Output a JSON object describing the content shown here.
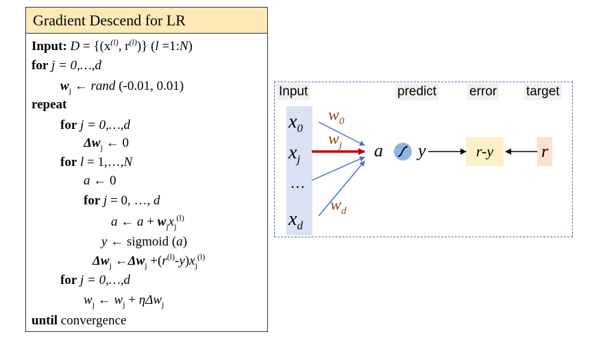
{
  "algorithm": {
    "title": "Gradient Descend for LR",
    "input_kw": "Input:",
    "input_rest_D": "D",
    "input_eq": " = {(x",
    "input_sup_l": "(l)",
    "input_comma": ", r",
    "input_sup_l2": "(l)",
    "input_close": ")} (",
    "input_l": "l",
    "input_eq2": " =1:",
    "input_N": "N",
    "input_paren": ")",
    "for_kw": "for",
    "for_range_italic": "j = 0,…,d",
    "w_var": "w",
    "sub_j": "j",
    "assign_rand": " ← ",
    "rand_word": "rand",
    "rand_args": " (-0.01, 0.01)",
    "repeat_kw": "repeat",
    "delta_w": "Δw",
    "assign_zero": " ← 0",
    "for_l_var": "l",
    "for_l_range": " = 1,…,",
    "for_l_N": "N",
    "a_var": "a",
    "a_zero": " ← 0",
    "for_j2_range": "j",
    "for_j2_rest": " = 0, …, ",
    "for_j2_d": "d",
    "a_update_arrow": " ← ",
    "a_update_plus": " + ",
    "x_var": "x",
    "sup_l1": "(l)",
    "y_var": "y",
    "sigmoid_text": " ← sigmoid (",
    "sigmoid_close": ")",
    "dw_arrow": " ←",
    "dw_plus": " +(",
    "r_var": "r",
    "dw_minus": "-",
    "dw_close": ")",
    "w_plain": "w",
    "w_update_arrow": " ← ",
    "w_update_plus": " + ",
    "eta": "η",
    "until_kw": "until",
    "until_rest": " convergence"
  },
  "diagram": {
    "labels": {
      "input": "Input",
      "predict": "predict",
      "error": "error",
      "target": "target"
    },
    "inputs": {
      "x": "x",
      "sub0": "0",
      "subj": "j",
      "ellipsis": "…",
      "subd": "d"
    },
    "weights": {
      "w": "w",
      "sub0": "0",
      "subj": "j",
      "subd": "d"
    },
    "a_label": "a",
    "y_label": "y",
    "error_box": "r-y",
    "target_box": "r",
    "colors": {
      "input_column": "#d9e2f3",
      "sigmoid_node": "#8eb4e3",
      "highlight_arrow": "#c00000",
      "input_arrow": "#4472c4",
      "weight_text": "#8a4a1c",
      "error_box": "#fdf0c8",
      "target_box": "#fbe0d3",
      "title_bg": "#fde9b8"
    }
  }
}
